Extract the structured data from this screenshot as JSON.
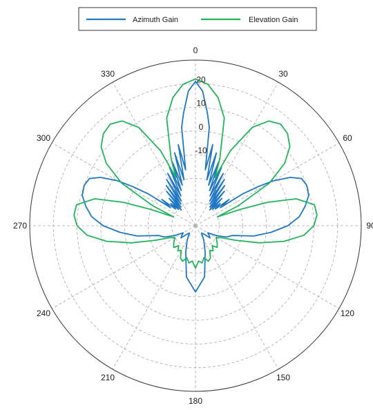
{
  "chart_data": {
    "type": "polar-line",
    "angle_direction": "clockwise",
    "zero_location": "top",
    "angle_ticks": [
      "0",
      "30",
      "60",
      "90",
      "120",
      "150",
      "180",
      "210",
      "240",
      "270",
      "300",
      "330"
    ],
    "angle_tick_values": [
      0,
      30,
      60,
      90,
      120,
      150,
      180,
      210,
      240,
      270,
      300,
      330
    ],
    "radial_ticks": [
      "-10",
      "0",
      "10",
      "20"
    ],
    "radial_tick_values": [
      -10,
      0,
      10,
      20
    ],
    "rlim": [
      -40,
      30
    ],
    "grid": true,
    "legend_position": "top",
    "series": [
      {
        "name": "Azimuth Gain",
        "color": "#1f77c4",
        "theta": [
          0,
          3,
          6,
          8,
          10,
          12,
          14,
          16,
          18,
          20,
          22,
          24,
          26,
          28,
          30,
          32,
          34,
          36,
          38,
          40,
          42,
          44,
          46,
          48,
          50,
          52,
          54,
          56,
          58,
          60,
          63,
          66,
          70,
          75,
          80,
          85,
          90,
          95,
          100,
          105,
          110,
          115,
          120,
          125,
          130,
          135,
          140,
          150,
          160,
          170,
          180
        ],
        "r": [
          21,
          17,
          8,
          2,
          -16,
          -5,
          -20,
          -8,
          -22,
          -11,
          -24,
          -13,
          -26,
          -15,
          -28,
          -17,
          -29,
          -19,
          -30,
          -21,
          -31,
          -24,
          -30,
          -26,
          -29,
          -22,
          -27,
          -16,
          -9,
          -2,
          5,
          9,
          10,
          9.5,
          7,
          4,
          -1,
          -8,
          -15,
          -24,
          -26,
          -30,
          -34,
          -33,
          -32,
          -35,
          -36,
          -33,
          -28,
          -18,
          -12
        ]
      },
      {
        "name": "Elevation Gain",
        "color": "#22b35a",
        "theta": [
          0,
          5,
          10,
          15,
          20,
          22,
          25,
          30,
          35,
          40,
          45,
          50,
          55,
          60,
          65,
          68,
          70,
          72,
          75,
          80,
          85,
          90,
          95,
          100,
          105,
          110,
          115,
          120,
          125,
          130,
          135,
          140,
          145,
          150,
          155,
          160,
          165,
          170,
          175,
          180
        ],
        "r": [
          22,
          20,
          15,
          7,
          -10,
          -18,
          -5,
          8,
          14,
          16,
          15,
          12,
          6,
          -4,
          -20,
          -30,
          -20,
          -8,
          4,
          11,
          11.5,
          10,
          6,
          -2,
          -12,
          -22,
          -28,
          -30,
          -29,
          -28,
          -27,
          -29,
          -27,
          -28,
          -25,
          -24,
          -26,
          -24,
          -25,
          -22
        ]
      }
    ]
  }
}
